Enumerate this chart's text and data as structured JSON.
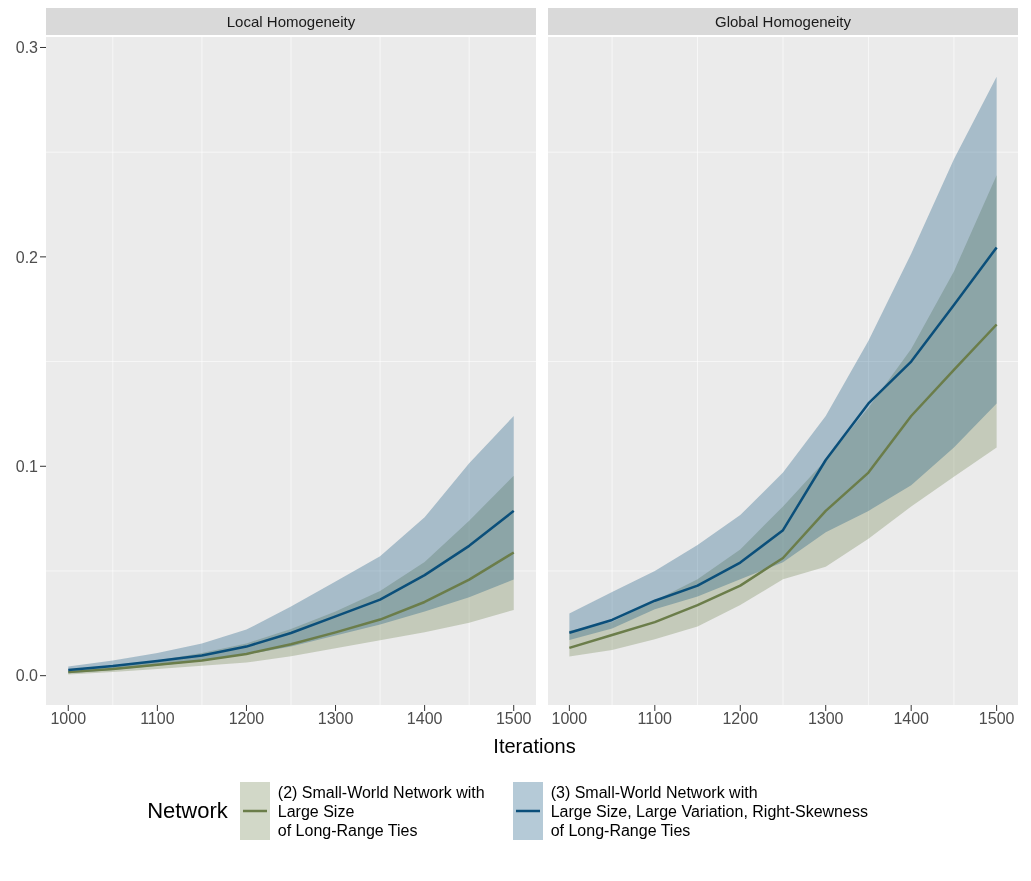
{
  "chart_data": [
    {
      "type": "line",
      "title": "Local Homogeneity",
      "xlabel": "Iterations",
      "legend_title": "Network",
      "legend": "bottom",
      "grid": true,
      "x": [
        1000,
        1050,
        1100,
        1150,
        1200,
        1250,
        1300,
        1350,
        1400,
        1450,
        1500
      ],
      "xlim": [
        975,
        1525
      ],
      "xticks": [
        1000,
        1100,
        1200,
        1300,
        1400,
        1500
      ],
      "ylim": [
        -0.014,
        0.305
      ],
      "yticks": [
        {
          "value": 0,
          "label": "0.0"
        },
        0.1,
        0.2,
        0.3
      ],
      "series": [
        {
          "name": "(2) Small-World Network with\nLarge Size\nof Long-Range Ties",
          "color": "#6b7d4a",
          "values": [
            0.0017,
            0.0032,
            0.0052,
            0.0073,
            0.0104,
            0.015,
            0.0207,
            0.0268,
            0.0352,
            0.0459,
            0.0588
          ],
          "lower": [
            0.0006,
            0.0017,
            0.0032,
            0.0047,
            0.0063,
            0.0093,
            0.0131,
            0.0169,
            0.0207,
            0.0253,
            0.0314
          ],
          "upper": [
            0.0024,
            0.0047,
            0.0073,
            0.0108,
            0.0154,
            0.0223,
            0.0306,
            0.0405,
            0.0543,
            0.074,
            0.0955
          ]
        },
        {
          "name": "(3) Small-World Network with\nLarge Size, Large Variation, Right-Skewness\nof Long-Range Ties",
          "color": "#0b4f7a",
          "values": [
            0.0027,
            0.0046,
            0.007,
            0.0096,
            0.0139,
            0.0204,
            0.0283,
            0.0363,
            0.048,
            0.062,
            0.0787
          ],
          "lower": [
            0.0012,
            0.0027,
            0.0047,
            0.007,
            0.0101,
            0.0139,
            0.0192,
            0.0245,
            0.0306,
            0.0375,
            0.0459
          ],
          "upper": [
            0.0044,
            0.0073,
            0.0108,
            0.0154,
            0.022,
            0.033,
            0.045,
            0.057,
            0.0756,
            0.1015,
            0.124
          ]
        }
      ]
    },
    {
      "type": "line",
      "title": "Global Homogeneity",
      "grid": true,
      "tick_labels": "x",
      "x": [
        1000,
        1050,
        1100,
        1150,
        1200,
        1250,
        1300,
        1350,
        1400,
        1450,
        1500
      ],
      "xlim": [
        975,
        1525
      ],
      "xticks": [
        1000,
        1100,
        1200,
        1300,
        1400,
        1500
      ],
      "ylim": [
        -0.014,
        0.305
      ],
      "yticks": [
        0,
        0.1,
        0.2,
        0.3
      ],
      "series": [
        {
          "color": "#6b7d4a",
          "values": [
            0.0133,
            0.0194,
            0.0256,
            0.0337,
            0.043,
            0.0562,
            0.0787,
            0.097,
            0.124,
            0.146,
            0.1677
          ],
          "lower": [
            0.0092,
            0.0123,
            0.0174,
            0.0235,
            0.0337,
            0.046,
            0.052,
            0.0654,
            0.0808,
            0.095,
            0.109
          ],
          "upper": [
            0.0215,
            0.0256,
            0.0358,
            0.046,
            0.0603,
            0.0808,
            0.103,
            0.128,
            0.156,
            0.193,
            0.239
          ]
        },
        {
          "color": "#0b4f7a",
          "values": [
            0.0205,
            0.0266,
            0.0358,
            0.043,
            0.054,
            0.0695,
            0.103,
            0.13,
            0.15,
            0.177,
            0.2045
          ],
          "lower": [
            0.017,
            0.0225,
            0.0317,
            0.0378,
            0.046,
            0.0542,
            0.0685,
            0.0787,
            0.091,
            0.109,
            0.13
          ],
          "upper": [
            0.0297,
            0.04,
            0.05,
            0.0624,
            0.0767,
            0.097,
            0.124,
            0.16,
            0.2015,
            0.2466,
            0.286
          ]
        }
      ]
    }
  ]
}
